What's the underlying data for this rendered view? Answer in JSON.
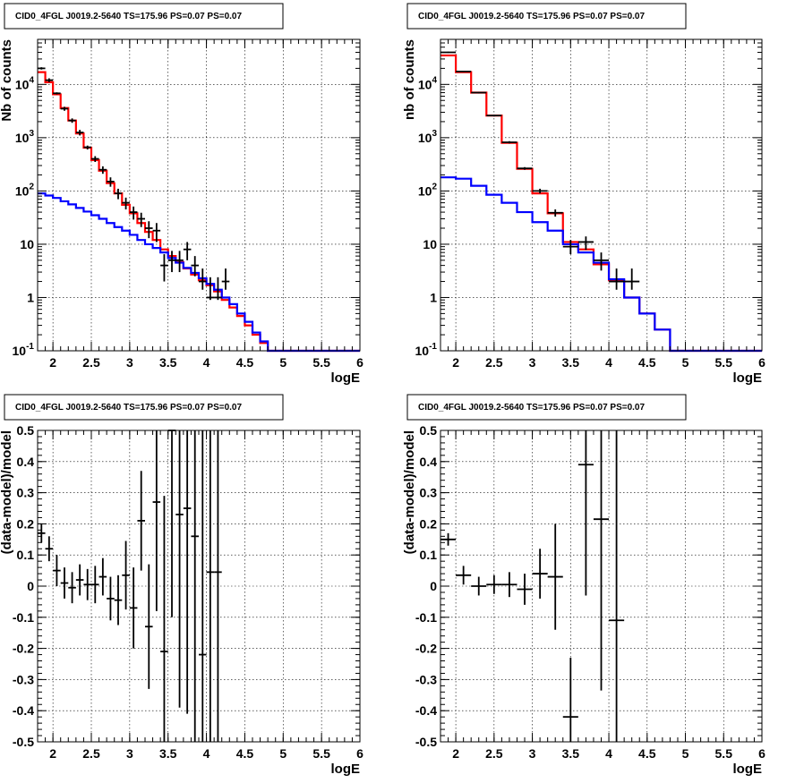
{
  "panels": [
    {
      "id": "top-left",
      "title": "CID0_4FGL J0019.2-5640 TS=175.96 PS=0.07 PS=0.07",
      "xlabel": "logE",
      "ylabel": "Nb of counts",
      "colors": {
        "total": "#ff0000",
        "source": "#0000ff",
        "data": "#000000"
      }
    },
    {
      "id": "top-right",
      "title": "CID0_4FGL J0019.2-5640 TS=175.96 PS=0.07 PS=0.07",
      "xlabel": "logE",
      "ylabel": "nb of counts",
      "colors": {
        "total": "#ff0000",
        "source": "#0000ff",
        "data": "#000000"
      }
    },
    {
      "id": "bottom-left",
      "title": "CID0_4FGL J0019.2-5640 TS=175.96 PS=0.07 PS=0.07",
      "xlabel": "logE",
      "ylabel": "(data-model)/model"
    },
    {
      "id": "bottom-right",
      "title": "CID0_4FGL J0019.2-5640 TS=175.96 PS=0.07 PS=0.07",
      "xlabel": "logE",
      "ylabel": "(data-model)/model"
    }
  ],
  "chart_data": [
    {
      "type": "line",
      "panel": "top-left",
      "yscale": "log",
      "xlim": [
        1.8,
        6.0
      ],
      "ylim": [
        0.1,
        70000
      ],
      "x_ticks": [
        "2",
        "2.5",
        "3",
        "3.5",
        "4",
        "4.5",
        "5",
        "5.5",
        "6"
      ],
      "y_ticks": [
        "10^-1",
        "1",
        "10",
        "10^2",
        "10^3",
        "10^4"
      ],
      "grid": true,
      "series": [
        {
          "role": "total",
          "edges": [
            1.8,
            1.9,
            2.0,
            2.1,
            2.2,
            2.3,
            2.4,
            2.5,
            2.6,
            2.7,
            2.8,
            2.9,
            3.0,
            3.1,
            3.2,
            3.3,
            3.4,
            3.5,
            3.6,
            3.7,
            3.8,
            3.9,
            4.0,
            4.1,
            4.2,
            4.3,
            4.4,
            4.5,
            4.6,
            4.7,
            4.8,
            4.9,
            5.0,
            6.0
          ],
          "values": [
            17000,
            11000,
            6500,
            3600,
            2100,
            1200,
            650,
            380,
            240,
            140,
            90,
            55,
            38,
            25,
            17,
            12,
            8,
            6,
            4.6,
            3.5,
            2.7,
            2.1,
            1.7,
            1.3,
            0.9,
            0.65,
            0.45,
            0.3,
            0.2,
            0.14,
            0.1,
            0.1,
            0.1
          ]
        },
        {
          "role": "source",
          "edges": [
            1.8,
            1.9,
            2.0,
            2.1,
            2.2,
            2.3,
            2.4,
            2.5,
            2.6,
            2.7,
            2.8,
            2.9,
            3.0,
            3.1,
            3.2,
            3.3,
            3.4,
            3.5,
            3.6,
            3.7,
            3.8,
            3.9,
            4.0,
            4.1,
            4.2,
            4.3,
            4.4,
            4.5,
            4.6,
            4.7,
            4.8,
            4.9,
            5.0,
            6.0
          ],
          "values": [
            90,
            82,
            74,
            64,
            56,
            48,
            41,
            35,
            30,
            25,
            21,
            18,
            15,
            12,
            10,
            8.5,
            7,
            5.5,
            4.5,
            3.6,
            2.9,
            2.3,
            1.8,
            1.4,
            1.0,
            0.75,
            0.5,
            0.35,
            0.22,
            0.15,
            0.1,
            0.1,
            0.1
          ]
        },
        {
          "role": "data",
          "x": [
            1.85,
            1.95,
            2.05,
            2.15,
            2.25,
            2.35,
            2.45,
            2.55,
            2.65,
            2.75,
            2.85,
            2.95,
            3.05,
            3.15,
            3.25,
            3.35,
            3.45,
            3.55,
            3.65,
            3.75,
            3.85,
            3.95,
            4.05,
            4.15,
            4.25
          ],
          "y": [
            20000,
            12000,
            6800,
            3500,
            2100,
            1250,
            660,
            400,
            250,
            150,
            90,
            60,
            40,
            30,
            20,
            18,
            4,
            5,
            5,
            8,
            4,
            2,
            1,
            1,
            2
          ],
          "yerr_low": [
            19000,
            11000,
            6500,
            3200,
            1900,
            1100,
            600,
            350,
            210,
            120,
            70,
            45,
            29,
            21,
            13,
            11,
            2,
            3,
            3,
            5,
            2.5,
            1.4,
            0.9,
            0.9,
            1.4
          ],
          "yerr_high": [
            21000,
            13000,
            7100,
            3800,
            2300,
            1400,
            710,
            450,
            290,
            180,
            110,
            75,
            51,
            39,
            27,
            25,
            6.5,
            7.5,
            7.5,
            11,
            6,
            3.5,
            2.4,
            2.4,
            3.5
          ]
        }
      ]
    },
    {
      "type": "line",
      "panel": "top-right",
      "yscale": "log",
      "xlim": [
        1.8,
        6.0
      ],
      "ylim": [
        0.1,
        70000
      ],
      "x_ticks": [
        "2",
        "2.5",
        "3",
        "3.5",
        "4",
        "4.5",
        "5",
        "5.5",
        "6"
      ],
      "y_ticks": [
        "10^-1",
        "1",
        "10",
        "10^2",
        "10^3",
        "10^4"
      ],
      "grid": true,
      "series": [
        {
          "role": "total",
          "edges": [
            1.8,
            2.0,
            2.2,
            2.4,
            2.6,
            2.8,
            3.0,
            3.2,
            3.4,
            3.6,
            3.8,
            4.0,
            4.2,
            4.4,
            4.6,
            4.8,
            5.0,
            6.0
          ],
          "values": [
            35000,
            17000,
            7000,
            2600,
            800,
            260,
            90,
            38,
            11,
            8,
            4.2,
            2.1,
            1.0,
            0.5,
            0.25,
            0.1,
            0.1
          ]
        },
        {
          "role": "source",
          "edges": [
            1.8,
            2.0,
            2.2,
            2.4,
            2.6,
            2.8,
            3.0,
            3.2,
            3.4,
            3.6,
            3.8,
            4.0,
            4.2,
            4.4,
            4.6,
            4.8,
            5.0,
            6.0
          ],
          "values": [
            180,
            170,
            125,
            85,
            60,
            40,
            26,
            18,
            10,
            7,
            4.5,
            2.2,
            1.0,
            0.5,
            0.25,
            0.1,
            0.1
          ]
        },
        {
          "role": "data",
          "x": [
            1.9,
            2.1,
            2.3,
            2.5,
            2.7,
            2.9,
            3.1,
            3.3,
            3.5,
            3.7,
            3.9,
            4.1,
            4.3
          ],
          "y": [
            40000,
            17500,
            7000,
            2600,
            820,
            265,
            100,
            39,
            9,
            11,
            5,
            2,
            2
          ],
          "yerr_low": [
            39000,
            17000,
            6800,
            2500,
            780,
            250,
            90,
            33,
            6.5,
            7.8,
            3.2,
            1.4,
            1.4
          ],
          "yerr_high": [
            41000,
            18000,
            7200,
            2700,
            860,
            280,
            110,
            45,
            12,
            14,
            7,
            3.5,
            3.5
          ]
        }
      ]
    },
    {
      "type": "scatter",
      "panel": "bottom-left",
      "xlim": [
        1.8,
        6.0
      ],
      "ylim": [
        -0.5,
        0.5
      ],
      "x_ticks": [
        "2",
        "2.5",
        "3",
        "3.5",
        "4",
        "4.5",
        "5",
        "5.5",
        "6"
      ],
      "y_ticks": [
        "-0.5",
        "-0.4",
        "-0.3",
        "-0.2",
        "-0.1",
        "0",
        "0.1",
        "0.2",
        "0.3",
        "0.4",
        "0.5"
      ],
      "grid": true,
      "series": [
        {
          "role": "residuals",
          "x": [
            1.85,
            1.95,
            2.05,
            2.15,
            2.25,
            2.35,
            2.45,
            2.55,
            2.65,
            2.75,
            2.85,
            2.95,
            3.05,
            3.15,
            3.25,
            3.35,
            3.45,
            3.55,
            3.65,
            3.75,
            3.85,
            3.95,
            4.05,
            4.15
          ],
          "y": [
            0.17,
            0.12,
            0.05,
            0.01,
            -0.005,
            0.02,
            0.005,
            0.005,
            0.03,
            -0.04,
            -0.045,
            0.035,
            -0.07,
            0.21,
            -0.13,
            0.27,
            -0.21,
            0.5,
            0.23,
            0.25,
            0.16,
            -0.22,
            0.045,
            0.045
          ],
          "yerr": [
            0.03,
            0.04,
            0.05,
            0.05,
            0.05,
            0.05,
            0.05,
            0.06,
            0.06,
            0.07,
            0.08,
            0.11,
            0.13,
            0.16,
            0.2,
            0.35,
            0.5,
            0.6,
            0.62,
            0.66,
            0.75,
            0.95,
            1.0,
            1.0
          ]
        }
      ]
    },
    {
      "type": "scatter",
      "panel": "bottom-right",
      "xlim": [
        1.8,
        6.0
      ],
      "ylim": [
        -0.5,
        0.5
      ],
      "x_ticks": [
        "2",
        "2.5",
        "3",
        "3.5",
        "4",
        "4.5",
        "5",
        "5.5",
        "6"
      ],
      "y_ticks": [
        "-0.5",
        "-0.4",
        "-0.3",
        "-0.2",
        "-0.1",
        "0",
        "0.1",
        "0.2",
        "0.3",
        "0.4",
        "0.5"
      ],
      "grid": true,
      "series": [
        {
          "role": "residuals",
          "x": [
            1.9,
            2.1,
            2.3,
            2.5,
            2.7,
            2.9,
            3.1,
            3.3,
            3.5,
            3.7,
            3.9,
            4.1
          ],
          "y": [
            0.15,
            0.035,
            0.0,
            0.005,
            0.005,
            -0.01,
            0.04,
            0.03,
            -0.42,
            0.39,
            0.215,
            -0.11
          ],
          "yerr": [
            0.02,
            0.03,
            0.03,
            0.03,
            0.04,
            0.05,
            0.08,
            0.17,
            0.19,
            0.42,
            0.55,
            0.8
          ]
        }
      ]
    }
  ]
}
